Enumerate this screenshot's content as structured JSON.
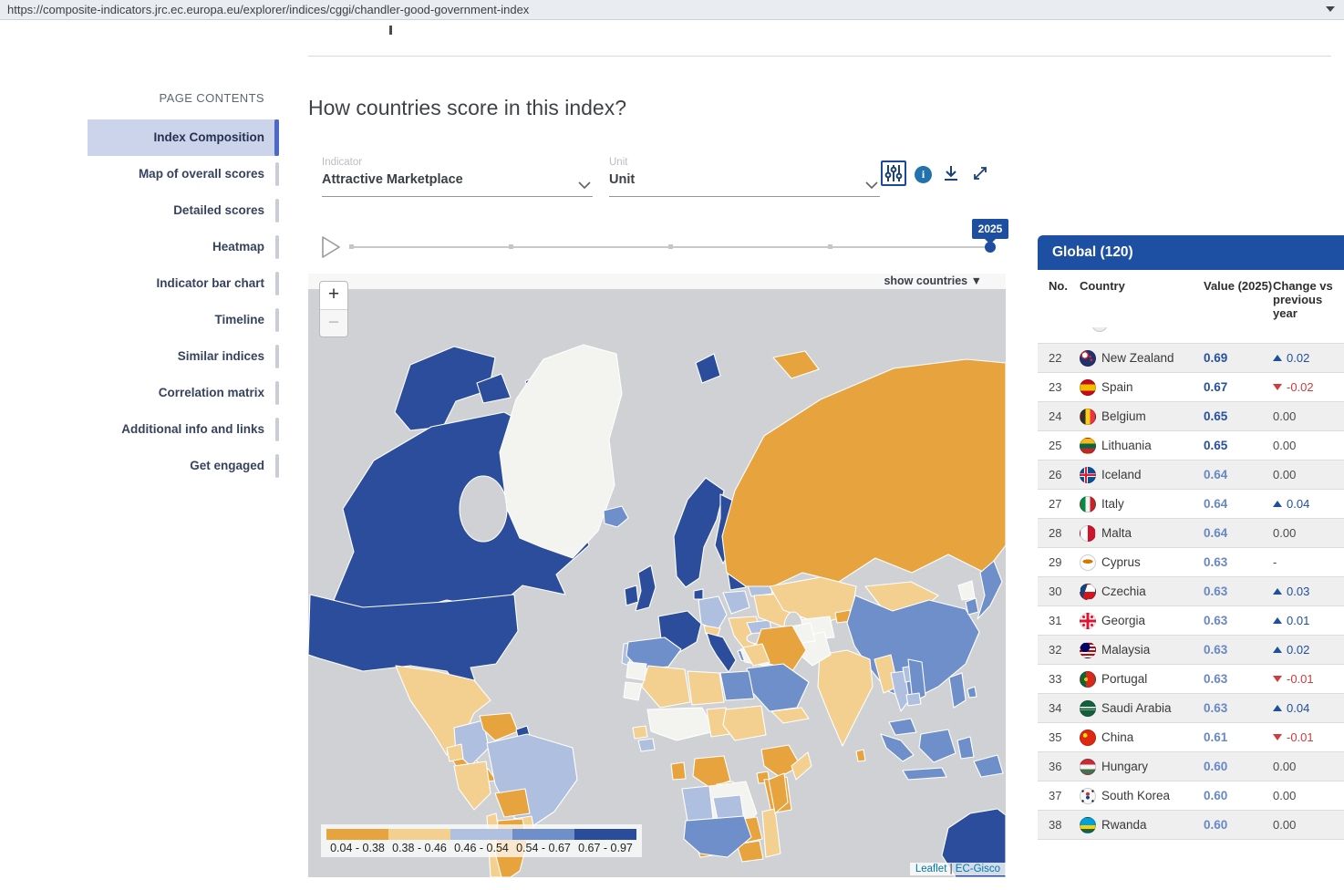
{
  "browser": {
    "url": "https://composite-indicators.jrc.ec.europa.eu/explorer/indices/cggi/chandler-good-government-index"
  },
  "sidebar": {
    "title": "PAGE CONTENTS",
    "items": [
      {
        "label": "Index Composition",
        "active": true
      },
      {
        "label": "Map of overall scores",
        "active": false
      },
      {
        "label": "Detailed scores",
        "active": false
      },
      {
        "label": "Heatmap",
        "active": false
      },
      {
        "label": "Indicator bar chart",
        "active": false
      },
      {
        "label": "Timeline",
        "active": false
      },
      {
        "label": "Similar indices",
        "active": false
      },
      {
        "label": "Correlation matrix",
        "active": false
      },
      {
        "label": "Additional info and links",
        "active": false
      },
      {
        "label": "Get engaged",
        "active": false
      }
    ]
  },
  "main": {
    "heading": "How countries score in this index?",
    "controls": {
      "indicator_label": "Indicator",
      "indicator_value": "Attractive Marketplace",
      "unit_label": "Unit",
      "unit_value": "Unit"
    },
    "timeline": {
      "year": "2025"
    },
    "map": {
      "show_countries": "show countries",
      "zoom_in": "+",
      "zoom_out": "−",
      "legend": [
        {
          "range": "0.04 - 0.38",
          "color": "#e7a33d"
        },
        {
          "range": "0.38 - 0.46",
          "color": "#f3cf90"
        },
        {
          "range": "0.46 - 0.54",
          "color": "#afc0e0"
        },
        {
          "range": "0.54 - 0.67",
          "color": "#6e8fc9"
        },
        {
          "range": "0.67 - 0.97",
          "color": "#2a4d9b"
        }
      ],
      "attribution": {
        "left": "Leaflet",
        "separator": "|",
        "right": "EC-Gisco"
      }
    }
  },
  "panel": {
    "title": "Global (120)",
    "columns": [
      "No.",
      "Country",
      "Value (2025)",
      "Change vs previous year"
    ],
    "value_colors": {
      "dark": "#27509e",
      "mid": "#6787c5"
    },
    "change_colors": {
      "up": "#1f4e9e",
      "down": "#d03c3c",
      "zero": "#4a4a4a",
      "none": "#4a4a4a"
    },
    "rows": [
      {
        "no": "22",
        "country": "New Zealand",
        "value": "0.69",
        "shade": "dark",
        "dir": "up",
        "change": "0.02",
        "flag": {
          "base": "#20336f",
          "layers": "radial-gradient(circle at 66% 38%,#cc2a32 0 9%,transparent 10%),radial-gradient(circle at 74% 62%,#cc2a32 0 9%,transparent 10%),radial-gradient(circle at 30% 28%,#ffffff 0 18%,#cc2a32 18% 26%,transparent 27%)"
        }
      },
      {
        "no": "23",
        "country": "Spain",
        "value": "0.67",
        "shade": "dark",
        "dir": "down",
        "change": "-0.02",
        "flag": {
          "base": "#c60b1e",
          "layers": "linear-gradient(180deg,#c60b1e 0 28%,#f1bf00 28% 72%,#c60b1e 72%)"
        }
      },
      {
        "no": "24",
        "country": "Belgium",
        "value": "0.65",
        "shade": "dark",
        "dir": "zero",
        "change": "0.00",
        "flag": {
          "base": "#32302d",
          "layers": "linear-gradient(90deg,#32302d 0 33%,#f7d117 33% 67%,#ef3340 67%)"
        }
      },
      {
        "no": "25",
        "country": "Lithuania",
        "value": "0.65",
        "shade": "dark",
        "dir": "zero",
        "change": "0.00",
        "flag": {
          "base": "#fdb913",
          "layers": "linear-gradient(180deg,#fdb913 0 34%,#006a44 34% 67%,#c1272d 67%)"
        }
      },
      {
        "no": "26",
        "country": "Iceland",
        "value": "0.64",
        "shade": "mid",
        "dir": "zero",
        "change": "0.00",
        "flag": {
          "base": "#02529c",
          "layers": "linear-gradient(90deg,transparent 0 32%,#dc1e35 32% 44%,transparent 44%),linear-gradient(180deg,transparent 0 42%,#dc1e35 42% 56%,transparent 56%),linear-gradient(90deg,transparent 0 26%,#fff 26% 50%,transparent 50%),linear-gradient(180deg,transparent 0 36%,#fff 36% 62%,transparent 62%)"
        }
      },
      {
        "no": "27",
        "country": "Italy",
        "value": "0.64",
        "shade": "mid",
        "dir": "up",
        "change": "0.04",
        "flag": {
          "base": "#f2f4f0",
          "layers": "linear-gradient(90deg,#008c45 0 33%,#f2f4f0 33% 67%,#cd212a 67%)"
        }
      },
      {
        "no": "28",
        "country": "Malta",
        "value": "0.64",
        "shade": "mid",
        "dir": "zero",
        "change": "0.00",
        "flag": {
          "base": "#fbfbfb",
          "layers": "linear-gradient(90deg,#fbfbfb 0 50%,#cf142b 50%)"
        }
      },
      {
        "no": "29",
        "country": "Cyprus",
        "value": "0.63",
        "shade": "mid",
        "dir": "none",
        "change": "-",
        "flag": {
          "base": "#fdfdfd",
          "layers": "radial-gradient(34% 14% at 50% 42%,#d57800 0 99%,transparent 100%)"
        }
      },
      {
        "no": "30",
        "country": "Czechia",
        "value": "0.63",
        "shade": "mid",
        "dir": "up",
        "change": "0.03",
        "flag": {
          "base": "#d7141a",
          "layers": "linear-gradient(110deg,#11457e 0 35%,transparent 35.5%),linear-gradient(180deg,#fff 0 50%,#d7141a 50%)"
        }
      },
      {
        "no": "31",
        "country": "Georgia",
        "value": "0.63",
        "shade": "mid",
        "dir": "up",
        "change": "0.01",
        "flag": {
          "base": "#ffffff",
          "layers": "linear-gradient(90deg,transparent 0 41%,#e8112d 41% 59%,transparent 59%),linear-gradient(180deg,transparent 0 41%,#e8112d 41% 59%,transparent 59%),radial-gradient(circle at 22% 22%,#e8112d 0 8%,transparent 9%),radial-gradient(circle at 78% 22%,#e8112d 0 8%,transparent 9%),radial-gradient(circle at 22% 78%,#e8112d 0 8%,transparent 9%),radial-gradient(circle at 78% 78%,#e8112d 0 8%,transparent 9%)"
        }
      },
      {
        "no": "32",
        "country": "Malaysia",
        "value": "0.63",
        "shade": "mid",
        "dir": "up",
        "change": "0.02",
        "flag": {
          "base": "#cc0001",
          "layers": "radial-gradient(circle at 30% 28%,#010066 0 34%,transparent 35%),repeating-linear-gradient(180deg,#cc0001 0 12.5%,#fff 12.5% 25%)"
        }
      },
      {
        "no": "33",
        "country": "Portugal",
        "value": "0.63",
        "shade": "mid",
        "dir": "down",
        "change": "-0.01",
        "flag": {
          "base": "#da291c",
          "layers": "radial-gradient(circle at 38% 50%,#f1bf00 0 16%,transparent 17%),linear-gradient(90deg,#046a38 0 38%,#da291c 38%)"
        }
      },
      {
        "no": "34",
        "country": "Saudi Arabia",
        "value": "0.63",
        "shade": "mid",
        "dir": "up",
        "change": "0.04",
        "flag": {
          "base": "#15603c",
          "layers": "linear-gradient(180deg,transparent 0 36%,rgba(255,255,255,.95) 36% 46%,transparent 46% 58%,rgba(255,255,255,.85) 58% 63%,transparent 63%)"
        }
      },
      {
        "no": "35",
        "country": "China",
        "value": "0.61",
        "shade": "mid",
        "dir": "down",
        "change": "-0.01",
        "flag": {
          "base": "#de2910",
          "layers": "radial-gradient(circle at 32% 34%,#ffde00 0 15%,transparent 16%)"
        }
      },
      {
        "no": "36",
        "country": "Hungary",
        "value": "0.60",
        "shade": "mid",
        "dir": "zero",
        "change": "0.00",
        "flag": {
          "base": "#ce2939",
          "layers": "linear-gradient(180deg,#ce2939 0 34%,#f5f5f5 34% 67%,#477050 67%)"
        }
      },
      {
        "no": "37",
        "country": "South Korea",
        "value": "0.60",
        "shade": "mid",
        "dir": "zero",
        "change": "0.00",
        "flag": {
          "base": "#f8f8f8",
          "layers": "radial-gradient(circle at 50% 36%,#cd2e3a 0 15%,transparent 16%),radial-gradient(circle at 50% 60%,#0047a0 0 15%,transparent 16%),radial-gradient(circle at 16% 16%,#222 0 6%,transparent 7%),radial-gradient(circle at 84% 16%,#222 0 6%,transparent 7%),radial-gradient(circle at 16% 84%,#222 0 6%,transparent 7%),radial-gradient(circle at 84% 84%,#222 0 6%,transparent 7%)"
        }
      },
      {
        "no": "38",
        "country": "Rwanda",
        "value": "0.60",
        "shade": "mid",
        "dir": "zero",
        "change": "0.00",
        "flag": {
          "base": "#00a1de",
          "layers": "linear-gradient(180deg,#00a1de 0 50%,#fad201 50% 74%,#20603d 74%)"
        }
      }
    ]
  }
}
